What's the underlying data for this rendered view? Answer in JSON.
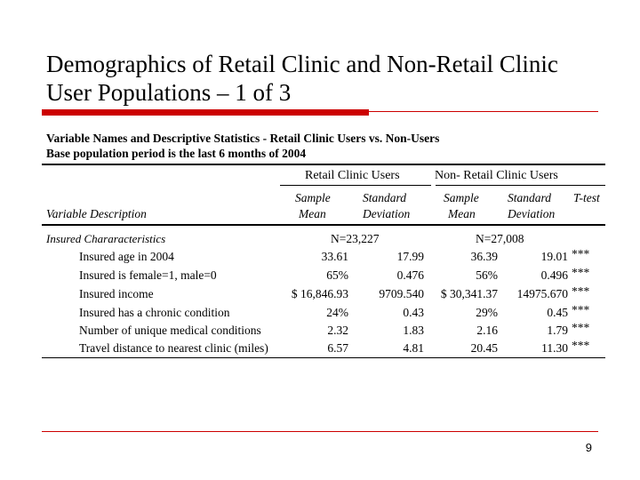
{
  "slide": {
    "title_line1": "Demographics of Retail Clinic and Non-Retail Clinic",
    "title_line2": "User Populations – 1 of 3",
    "page_number": "9"
  },
  "table": {
    "heading_line1": "Variable Names and Descriptive Statistics - Retail Clinic Users vs. Non-Users",
    "heading_line2": "Base population period is the last 6 months of 2004",
    "group_retail": "Retail Clinic Users",
    "group_nonretail": "Non- Retail Clinic Users",
    "variable_description": "Variable Description",
    "col_sample": "Sample",
    "col_mean": "Mean",
    "col_standard": "Standard",
    "col_deviation": "Deviation",
    "col_ttest": "T-test",
    "section_label": "Insured Chararacteristics",
    "n_retail": "N=23,227",
    "n_nonretail": "N=27,008",
    "rows": [
      {
        "label": "Insured age in 2004",
        "r_mean": "33.61",
        "r_sd": "17.99",
        "n_mean": "36.39",
        "n_sd": "19.01",
        "sig": "***"
      },
      {
        "label": "Insured is female=1, male=0",
        "r_mean": "65%",
        "r_sd": "0.476",
        "n_mean": "56%",
        "n_sd": "0.496",
        "sig": "***"
      },
      {
        "label": "Insured income",
        "r_mean": "$ 16,846.93",
        "r_sd": "9709.540",
        "n_mean": "$ 30,341.37",
        "n_sd": "14975.670",
        "sig": "***"
      },
      {
        "label": "Insured has a chronic condition",
        "r_mean": "24%",
        "r_sd": "0.43",
        "n_mean": "29%",
        "n_sd": "0.45",
        "sig": "***"
      },
      {
        "label": "Number of unique medical conditions",
        "r_mean": "2.32",
        "r_sd": "1.83",
        "n_mean": "2.16",
        "n_sd": "1.79",
        "sig": "***"
      },
      {
        "label": "Travel distance to nearest clinic (miles)",
        "r_mean": "6.57",
        "r_sd": "4.81",
        "n_mean": "20.45",
        "n_sd": "11.30",
        "sig": "***"
      }
    ]
  }
}
